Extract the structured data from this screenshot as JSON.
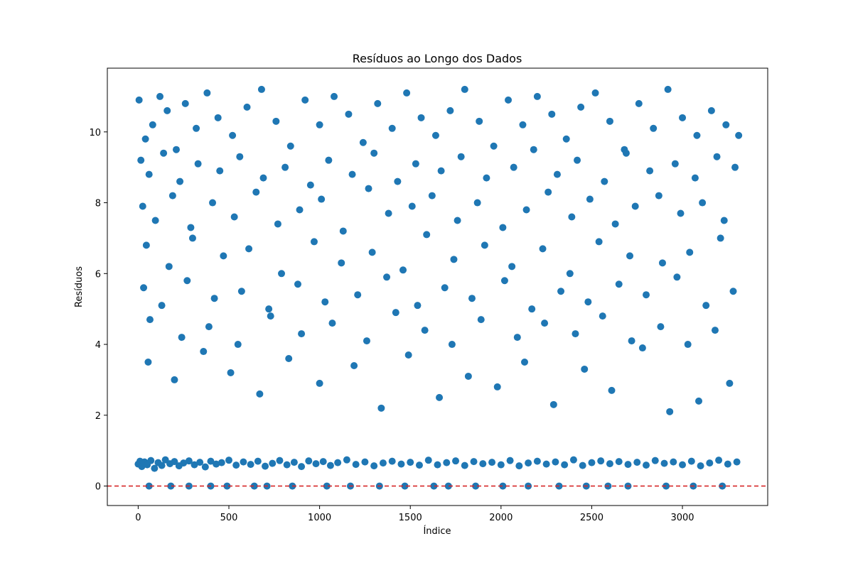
{
  "chart_data": {
    "type": "scatter",
    "title": "Resíduos ao Longo dos Dados",
    "xlabel": "Índice",
    "ylabel": "Resíduos",
    "xlim": [
      -170,
      3470
    ],
    "ylim": [
      -0.55,
      11.8
    ],
    "xticks": [
      0,
      500,
      1000,
      1500,
      2000,
      2500,
      3000
    ],
    "yticks": [
      0,
      2,
      4,
      6,
      8,
      10
    ],
    "grid": false,
    "legend": "none",
    "marker_color": "#1f77b4",
    "reference_line": {
      "y": 0,
      "color": "#d62728",
      "style": "dashed"
    },
    "series": [
      {
        "x": [
          0,
          10,
          20,
          35,
          50,
          70,
          90,
          110,
          130,
          150,
          175,
          200,
          225,
          250,
          280,
          310,
          340,
          370,
          400,
          430,
          460,
          500,
          540,
          580,
          620,
          660,
          700,
          740,
          780,
          820,
          860,
          900,
          940,
          980,
          1020,
          1060,
          1100,
          1150,
          1200,
          1250,
          1300,
          1350,
          1400,
          1450,
          1500,
          1550,
          1600,
          1650,
          1700,
          1750,
          1800,
          1850,
          1900,
          1950,
          2000,
          2050,
          2100,
          2150,
          2200,
          2250,
          2300,
          2350,
          2400,
          2450,
          2500,
          2550,
          2600,
          2650,
          2700,
          2750,
          2800,
          2850,
          2900,
          2950,
          3000,
          3050,
          3100,
          3150,
          3200,
          3250,
          3300,
          5,
          40,
          80,
          120,
          160,
          210,
          260,
          320,
          380,
          440,
          520,
          600,
          680,
          760,
          840,
          920,
          1000,
          1080,
          1160,
          1240,
          1320,
          1400,
          1480,
          1560,
          1640,
          1720,
          1800,
          1880,
          1960,
          2040,
          2120,
          2200,
          2280,
          2360,
          2440,
          2520,
          2600,
          2680,
          2760,
          2840,
          2920,
          3000,
          3080,
          3160,
          3240,
          3310,
          15,
          60,
          140,
          230,
          330,
          450,
          560,
          690,
          810,
          950,
          1050,
          1180,
          1300,
          1430,
          1530,
          1670,
          1780,
          1920,
          2070,
          2180,
          2310,
          2420,
          2570,
          2690,
          2820,
          2960,
          3070,
          3190,
          3290,
          25,
          95,
          190,
          290,
          410,
          530,
          650,
          770,
          890,
          1010,
          1130,
          1270,
          1380,
          1510,
          1620,
          1760,
          1870,
          2010,
          2140,
          2260,
          2390,
          2490,
          2630,
          2740,
          2870,
          2990,
          3110,
          3230,
          45,
          170,
          300,
          470,
          610,
          790,
          970,
          1120,
          1290,
          1460,
          1590,
          1740,
          1910,
          2060,
          2230,
          2380,
          2540,
          2710,
          2890,
          3040,
          3210,
          30,
          130,
          270,
          420,
          570,
          720,
          880,
          1030,
          1210,
          1370,
          1540,
          1690,
          1840,
          2020,
          2170,
          2330,
          2480,
          2650,
          2800,
          2970,
          3130,
          3280,
          65,
          240,
          390,
          550,
          730,
          900,
          1070,
          1260,
          1420,
          1580,
          1730,
          1890,
          2090,
          2240,
          2410,
          2560,
          2720,
          2880,
          3030,
          3180,
          55,
          200,
          360,
          510,
          670,
          830,
          1000,
          1190,
          1340,
          1490,
          1660,
          1820,
          1980,
          2130,
          2290,
          2460,
          2610,
          2780,
          2930,
          3090,
          3260,
          60,
          180,
          280,
          400,
          490,
          640,
          710,
          850,
          1040,
          1170,
          1330,
          1470,
          1630,
          1710,
          1860,
          2010,
          2150,
          2320,
          2470,
          2590,
          2700,
          2910,
          3060,
          3220
        ],
        "y": [
          0.62,
          0.7,
          0.55,
          0.68,
          0.6,
          0.72,
          0.5,
          0.66,
          0.58,
          0.74,
          0.63,
          0.69,
          0.57,
          0.65,
          0.71,
          0.6,
          0.67,
          0.54,
          0.7,
          0.62,
          0.66,
          0.73,
          0.59,
          0.68,
          0.61,
          0.7,
          0.56,
          0.64,
          0.72,
          0.6,
          0.67,
          0.55,
          0.71,
          0.63,
          0.69,
          0.58,
          0.66,
          0.74,
          0.61,
          0.68,
          0.57,
          0.65,
          0.7,
          0.62,
          0.67,
          0.59,
          0.73,
          0.6,
          0.66,
          0.71,
          0.58,
          0.69,
          0.63,
          0.67,
          0.6,
          0.72,
          0.57,
          0.65,
          0.7,
          0.62,
          0.68,
          0.6,
          0.74,
          0.58,
          0.66,
          0.71,
          0.63,
          0.69,
          0.61,
          0.67,
          0.59,
          0.72,
          0.64,
          0.68,
          0.6,
          0.7,
          0.57,
          0.65,
          0.73,
          0.62,
          0.68,
          10.9,
          9.8,
          10.2,
          11.0,
          10.6,
          9.5,
          10.8,
          10.1,
          11.1,
          10.4,
          9.9,
          10.7,
          11.2,
          10.3,
          9.6,
          10.9,
          10.2,
          11.0,
          10.5,
          9.7,
          10.8,
          10.1,
          11.1,
          10.4,
          9.9,
          10.6,
          11.2,
          10.3,
          9.6,
          10.9,
          10.2,
          11.0,
          10.5,
          9.8,
          10.7,
          11.1,
          10.3,
          9.5,
          10.8,
          10.1,
          11.2,
          10.4,
          9.9,
          10.6,
          10.2,
          9.9,
          9.2,
          8.8,
          9.4,
          8.6,
          9.1,
          8.9,
          9.3,
          8.7,
          9.0,
          8.5,
          9.2,
          8.8,
          9.4,
          8.6,
          9.1,
          8.9,
          9.3,
          8.7,
          9.0,
          9.5,
          8.8,
          9.2,
          8.6,
          9.4,
          8.9,
          9.1,
          8.7,
          9.3,
          9.0,
          7.9,
          7.5,
          8.2,
          7.3,
          8.0,
          7.6,
          8.3,
          7.4,
          7.8,
          8.1,
          7.2,
          8.4,
          7.7,
          7.9,
          8.2,
          7.5,
          8.0,
          7.3,
          7.8,
          8.3,
          7.6,
          8.1,
          7.4,
          7.9,
          8.2,
          7.7,
          8.0,
          7.5,
          6.8,
          6.2,
          7.0,
          6.5,
          6.7,
          6.0,
          6.9,
          6.3,
          6.6,
          6.1,
          7.1,
          6.4,
          6.8,
          6.2,
          6.7,
          6.0,
          6.9,
          6.5,
          6.3,
          6.6,
          7.0,
          5.6,
          5.1,
          5.8,
          5.3,
          5.5,
          5.0,
          5.7,
          5.2,
          5.4,
          5.9,
          5.1,
          5.6,
          5.3,
          5.8,
          5.0,
          5.5,
          5.2,
          5.7,
          5.4,
          5.9,
          5.1,
          5.5,
          4.7,
          4.2,
          4.5,
          4.0,
          4.8,
          4.3,
          4.6,
          4.1,
          4.9,
          4.4,
          4.0,
          4.7,
          4.2,
          4.6,
          4.3,
          4.8,
          4.1,
          4.5,
          4.0,
          4.4,
          3.5,
          3.0,
          3.8,
          3.2,
          2.6,
          3.6,
          2.9,
          3.4,
          2.2,
          3.7,
          2.5,
          3.1,
          2.8,
          3.5,
          2.3,
          3.3,
          2.7,
          3.9,
          2.1,
          2.4,
          2.9,
          0.0,
          0.0,
          0.0,
          0.0,
          0.0,
          0.0,
          0.0,
          0.0,
          0.0,
          0.0,
          0.0,
          0.0,
          0.0,
          0.0,
          0.0,
          0.0,
          0.0,
          0.0,
          0.0,
          0.0,
          0.0,
          0.0,
          0.0,
          0.0
        ]
      }
    ]
  }
}
